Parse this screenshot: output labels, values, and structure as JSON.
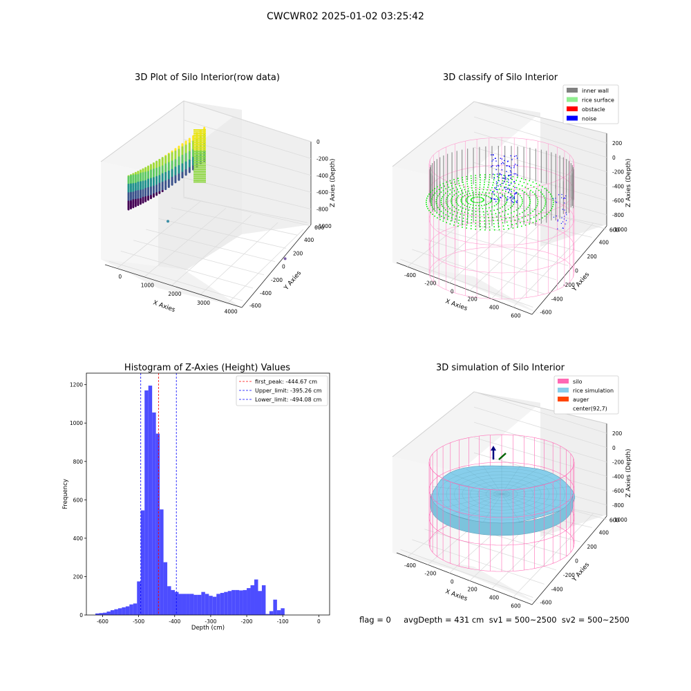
{
  "figure": {
    "suptitle": "CWCWR02 2025-01-02 03:25:42",
    "status_line": "flag = 0     avgDepth = 431 cm  sv1 = 500~2500  sv2 = 500~2500"
  },
  "colors": {
    "pane_grid": "#d9d9d9",
    "inner_wall": "#808080",
    "rice_surface": "#90ee90",
    "rice_points": "#00ee00",
    "obstacle": "#ff0000",
    "noise": "#0000ff",
    "silo": "#ff69b4",
    "rice_simulation": "#87ceeb",
    "auger": "#ff4500",
    "histogram_bars": "#4d4dff",
    "peak_line": "#ff0000",
    "limit_lines": "#0000ff"
  },
  "chart_data": [
    {
      "type": "scatter3d",
      "title": "3D Plot of Silo Interior(row data)",
      "xlabel": "X Axies",
      "ylabel": "Y Axies",
      "zlabel": "Z Axies (Depth)",
      "x_ticks": [
        "0",
        "1000",
        "2000",
        "3000",
        "4000"
      ],
      "y_ticks": [
        "-600",
        "-400",
        "-200",
        "0",
        "200",
        "400",
        "600"
      ],
      "z_ticks": [
        "0",
        "-200",
        "-400",
        "-600",
        "-800",
        "-1000"
      ],
      "xlim": [
        -300,
        4400
      ],
      "ylim": [
        -650,
        650
      ],
      "zlim": [
        -1050,
        50
      ],
      "colormap": "viridis",
      "outliers": [
        {
          "x": 1350,
          "y": 200,
          "z": -600
        },
        {
          "x": 4300,
          "y": 620,
          "z": -880
        }
      ]
    },
    {
      "type": "scatter3d",
      "title": "3D classify of Silo Interior",
      "xlabel": "X Axies",
      "ylabel": "Y Axies",
      "zlabel": "Z Axies (Depth)",
      "x_ticks": [
        "-400",
        "-200",
        "0",
        "200",
        "400",
        "600"
      ],
      "y_ticks": [
        "-600",
        "-400",
        "-200",
        "0",
        "200",
        "400",
        "600"
      ],
      "z_ticks": [
        "200",
        "0",
        "-200",
        "-400",
        "-600",
        "-800",
        "-1000"
      ],
      "xlim": [
        -550,
        700
      ],
      "ylim": [
        -650,
        650
      ],
      "zlim": [
        -1000,
        250
      ],
      "legend": [
        {
          "label": "inner wall",
          "color": "#808080"
        },
        {
          "label": "rice surface",
          "color": "#90ee90"
        },
        {
          "label": "obstacle",
          "color": "#ff0000"
        },
        {
          "label": "noise",
          "color": "#0000ff"
        }
      ],
      "legend_position": "top-right"
    },
    {
      "type": "bar",
      "title": "Histogram of Z-Axies (Height) Values",
      "xlabel": "Depth (cm)",
      "ylabel": "Frequency",
      "xlim": [
        -645,
        30
      ],
      "ylim": [
        0,
        1260
      ],
      "x_ticks": [
        -600,
        -500,
        -400,
        -300,
        -200,
        -100,
        0
      ],
      "y_ticks": [
        0,
        200,
        400,
        600,
        800,
        1000,
        1200
      ],
      "bin_start": -620,
      "bin_width": 10.5,
      "values": [
        8,
        10,
        12,
        18,
        25,
        30,
        35,
        40,
        45,
        55,
        60,
        175,
        545,
        1170,
        1195,
        1055,
        945,
        550,
        275,
        150,
        130,
        120,
        110,
        110,
        110,
        110,
        105,
        105,
        120,
        110,
        100,
        95,
        110,
        115,
        120,
        125,
        130,
        130,
        128,
        130,
        140,
        155,
        185,
        125,
        155,
        5,
        20,
        80,
        25,
        35
      ],
      "vlines": [
        {
          "label": "first_peak: -444.67 cm",
          "x": -444.67,
          "color": "#ff0000"
        },
        {
          "label": "Upper_limit: -395.26 cm",
          "x": -395.26,
          "color": "#0000ff"
        },
        {
          "label": "Lower_limit: -494.08 cm",
          "x": -494.08,
          "color": "#0000ff"
        }
      ],
      "legend_position": "top-right"
    },
    {
      "type": "surface3d",
      "title": "3D simulation of Silo Interior",
      "xlabel": "X Axies",
      "ylabel": "Y Axies",
      "zlabel": "Z Axies (Depth)",
      "x_ticks": [
        "-400",
        "-200",
        "0",
        "200",
        "400",
        "600"
      ],
      "y_ticks": [
        "-600",
        "-400",
        "-200",
        "0",
        "200",
        "400",
        "600"
      ],
      "z_ticks": [
        "200",
        "0",
        "-200",
        "-400",
        "-600",
        "-800",
        "-1000"
      ],
      "xlim": [
        -550,
        700
      ],
      "ylim": [
        -650,
        650
      ],
      "zlim": [
        -1000,
        250
      ],
      "legend": [
        {
          "label": "silo",
          "color": "#ff69b4"
        },
        {
          "label": "rice simulation",
          "color": "#87ceeb"
        },
        {
          "label": "auger",
          "color": "#ff4500"
        },
        {
          "label": "center(92,7)",
          "color": "#ffffff"
        }
      ],
      "legend_position": "top-right"
    }
  ]
}
